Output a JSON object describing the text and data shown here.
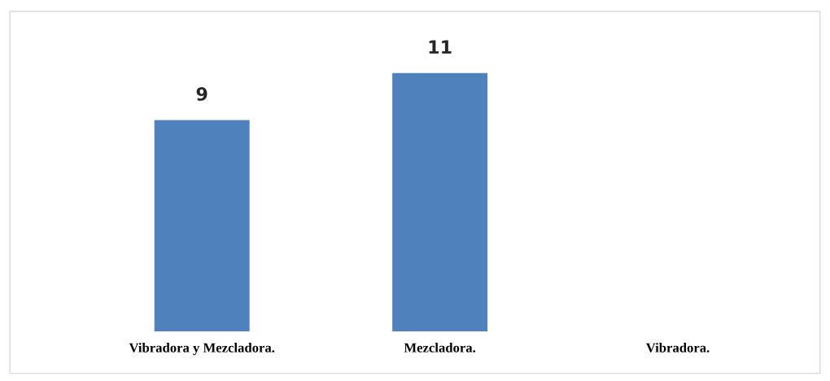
{
  "chart_data": {
    "type": "bar",
    "categories": [
      "Vibradora y Mezcladora.",
      "Mezcladora.",
      "Vibradora."
    ],
    "values": [
      9,
      11,
      null
    ],
    "color": "#4f81bd",
    "data_labels": true
  }
}
